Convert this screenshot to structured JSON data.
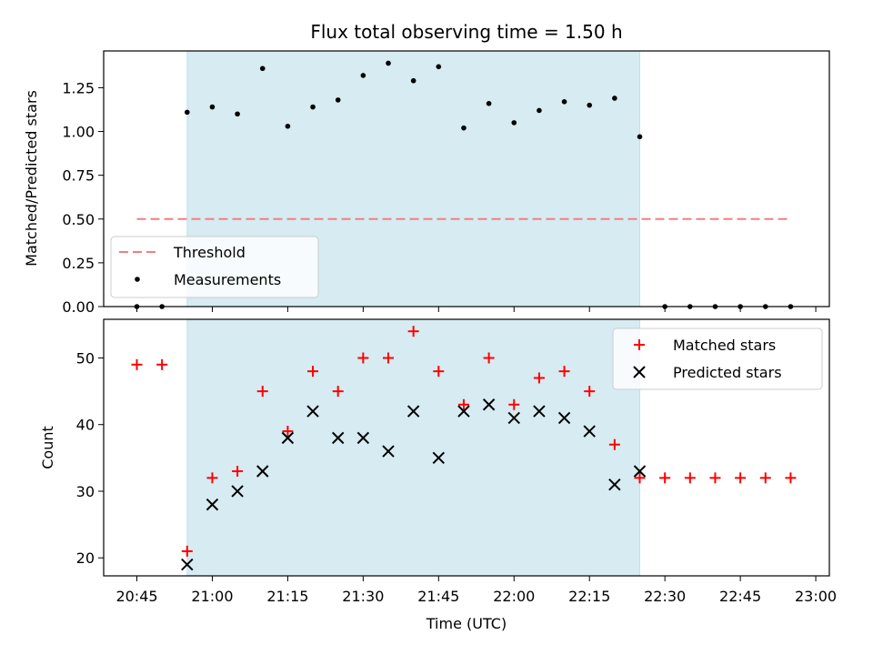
{
  "chart_data": [
    {
      "type": "scatter",
      "title": "Flux total observing time = 1.50 h",
      "xlabel": "",
      "ylabel": "Matched/Predicted stars",
      "ylim": [
        0,
        1.46
      ],
      "yticks": [
        "0.00",
        "0.25",
        "0.50",
        "0.75",
        "1.00",
        "1.25"
      ],
      "threshold": {
        "name": "Threshold",
        "value": 0.5,
        "x_start": "20:45",
        "x_end": "22:55",
        "color": "#f08080"
      },
      "series": [
        {
          "name": "Measurements",
          "color": "#000000",
          "x": [
            "20:45",
            "20:50",
            "20:55",
            "21:00",
            "21:05",
            "21:10",
            "21:15",
            "21:20",
            "21:25",
            "21:30",
            "21:35",
            "21:40",
            "21:45",
            "21:50",
            "21:55",
            "22:00",
            "22:05",
            "22:10",
            "22:15",
            "22:20",
            "22:25",
            "22:30",
            "22:35",
            "22:40",
            "22:45",
            "22:50",
            "22:55"
          ],
          "y": [
            0.0,
            0.0,
            1.11,
            1.14,
            1.1,
            1.36,
            1.03,
            1.14,
            1.18,
            1.32,
            1.39,
            1.29,
            1.37,
            1.02,
            1.16,
            1.05,
            1.12,
            1.17,
            1.15,
            1.19,
            0.97,
            0.0,
            0.0,
            0.0,
            0.0,
            0.0,
            0.0
          ]
        }
      ],
      "shaded_region": {
        "x_start": "20:55",
        "x_end": "22:25",
        "color": "#add8e6"
      },
      "legend": "lower-left"
    },
    {
      "type": "scatter",
      "title": "",
      "xlabel": "Time (UTC)",
      "ylabel": "Count",
      "ylim": [
        17.3,
        55.8
      ],
      "yticks": [
        "20",
        "30",
        "40",
        "50"
      ],
      "xticks": [
        "20:45",
        "21:00",
        "21:15",
        "21:30",
        "21:45",
        "22:00",
        "22:15",
        "22:30",
        "22:45",
        "23:00"
      ],
      "series": [
        {
          "name": "Matched stars",
          "marker": "plus",
          "color": "#ff0000",
          "x": [
            "20:45",
            "20:50",
            "20:55",
            "21:00",
            "21:05",
            "21:10",
            "21:15",
            "21:20",
            "21:25",
            "21:30",
            "21:35",
            "21:40",
            "21:45",
            "21:50",
            "21:55",
            "22:00",
            "22:05",
            "22:10",
            "22:15",
            "22:20",
            "22:25",
            "22:30",
            "22:35",
            "22:40",
            "22:45",
            "22:50",
            "22:55"
          ],
          "y": [
            49,
            49,
            21,
            32,
            33,
            45,
            39,
            48,
            45,
            50,
            50,
            54,
            48,
            43,
            50,
            43,
            47,
            48,
            45,
            37,
            32,
            32,
            32,
            32,
            32,
            32,
            32
          ]
        },
        {
          "name": "Predicted stars",
          "marker": "x",
          "color": "#000000",
          "x": [
            "20:55",
            "21:00",
            "21:05",
            "21:10",
            "21:15",
            "21:20",
            "21:25",
            "21:30",
            "21:35",
            "21:40",
            "21:45",
            "21:50",
            "21:55",
            "22:00",
            "22:05",
            "22:10",
            "22:15",
            "22:20",
            "22:25"
          ],
          "y": [
            19,
            28,
            30,
            33,
            38,
            42,
            38,
            38,
            36,
            42,
            35,
            42,
            43,
            41,
            42,
            41,
            39,
            31,
            33
          ]
        }
      ],
      "shaded_region": {
        "x_start": "20:55",
        "x_end": "22:25",
        "color": "#add8e6"
      },
      "legend": "upper-right"
    }
  ]
}
